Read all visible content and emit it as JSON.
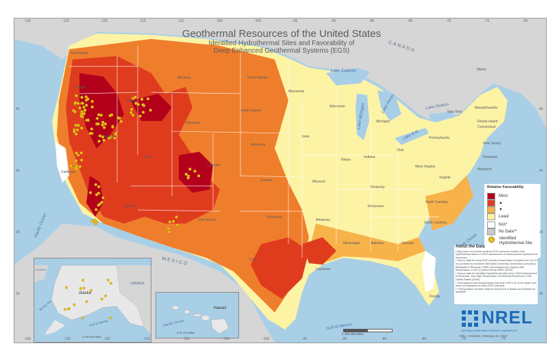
{
  "title": "Geothermal Resources of the United States",
  "subtitle_line1": "Identified Hydrothermal Sites and Favorability of",
  "subtitle_line2": "Deep Enhanced Geothermal Systems (EGS)",
  "top_ticks": [
    "-130",
    "-125",
    "-120",
    "-115",
    "-110",
    "-105",
    "-100",
    "-95",
    "-90",
    "-85",
    "-80",
    "-75",
    "-70",
    "-65"
  ],
  "bottom_ticks": [
    "-130",
    "-125",
    "-120",
    "-115",
    "-110",
    "-105",
    "-100",
    "-95",
    "-90",
    "-85",
    "-80",
    "-75",
    "-70"
  ],
  "left_ticks": [
    "45",
    "40",
    "35",
    "30"
  ],
  "right_ticks": [
    "45",
    "40",
    "35",
    "30"
  ],
  "country_labels": {
    "canada": "CANADA",
    "mexico": "MEXICO"
  },
  "water_labels": {
    "pacific": "Pacific Ocean",
    "atlantic": "Atlantic Ocean",
    "gulf": "Gulf of Mexico",
    "superior": "Lake Superior",
    "michigan": "Lake Michigan",
    "huron": "Lake Huron",
    "erie": "Lake Erie",
    "ontario": "Lake Ontario"
  },
  "states": {
    "washington": "Washington",
    "oregon": "Oregon",
    "california": "California",
    "nevada": "Nevada",
    "idaho": "Idaho",
    "montana": "Montana",
    "wyoming": "Wyoming",
    "utah": "Utah",
    "arizona": "Arizona",
    "colorado": "Colorado",
    "new_mexico": "New Mexico",
    "north_dakota": "North Dakota",
    "south_dakota": "South Dakota",
    "nebraska": "Nebraska",
    "kansas": "Kansas",
    "oklahoma": "Oklahoma",
    "texas": "Texas",
    "minnesota": "Minnesota",
    "iowa": "Iowa",
    "missouri": "Missouri",
    "arkansas": "Arkansas",
    "louisiana": "Louisiana",
    "wisconsin": "Wisconsin",
    "illinois": "Illinois",
    "michigan": "Michigan",
    "indiana": "Indiana",
    "ohio": "Ohio",
    "kentucky": "Kentucky",
    "tennessee": "Tennessee",
    "mississippi": "Mississippi",
    "alabama": "Alabama",
    "georgia": "Georgia",
    "florida": "Florida",
    "south_carolina": "South Carolina",
    "north_carolina": "North Carolina",
    "virginia": "Virginia",
    "west_virginia": "West Virginia",
    "pennsylvania": "Pennsylvania",
    "new_york": "New York",
    "maine": "Maine",
    "massachusetts": "Massachusetts",
    "rhode_island": "Rhode Island",
    "connecticut": "Connecticut",
    "new_jersey": "New Jersey",
    "delaware": "Delaware",
    "maryland": "Maryland"
  },
  "legend": {
    "title": "Relative Favorability",
    "most": "Most",
    "least": "Least",
    "na": "N/A*",
    "no_data": "No Data**",
    "sites": "Identified Hydrothermal Site (≥ 90°C)",
    "colors": [
      "#b3001b",
      "#df3c1e",
      "#ef7e2c",
      "#f8b24a",
      "#fdf3a5",
      "#ffffff",
      "#c9c9c9"
    ],
    "site_color": "#f3c21b"
  },
  "about": {
    "heading": "About the Data",
    "bullets": [
      "• Map does not include shallow EGS resources located near hydrothermal sites or USGS assessment of undiscovered hydrothermal resources.",
      "• Source data for deep EGS includes temperature at depth from 3 to 10 km provided by Southern Methodist University Geothermal Laboratory (Blackwell & Richards, 2009) and analyses (for regions with temperature ≥ 150°C) performed by NREL (2009).",
      "• Source data for identified hydrothermal sites from USGS Assessment of Moderate- and High-Temperature Geothermal Resources of the United States (2008).",
      "• *N/A regions have temperatures less than 150°C at 10 km depth and were not assessed for deep EGS potential.",
      "• **Temperature at depth data for deep EGS in Alaska and Hawaii not available."
    ]
  },
  "nrel": {
    "name": "NREL",
    "tagline": "NATIONAL RENEWABLE ENERGY LABORATORY",
    "credit": "Billy J. Roberts, February 22, 2018"
  },
  "alaska": {
    "name": "Alaska",
    "canada": "CANADA",
    "russia": "RUSSIA",
    "bering": "Bering Sea",
    "gulf": "Gulf of Alaska",
    "scale": "0 200 400 Miles",
    "ticks": [
      "-170",
      "-160",
      "-150",
      "-140",
      "-130"
    ]
  },
  "hawaii": {
    "name": "Hawaii",
    "ocean": "Pacific Ocean",
    "scale": "0 50 100 Miles",
    "ticks": [
      "-160",
      "-158",
      "-156",
      "-154"
    ]
  },
  "main_scale": "0 150 300 Miles"
}
